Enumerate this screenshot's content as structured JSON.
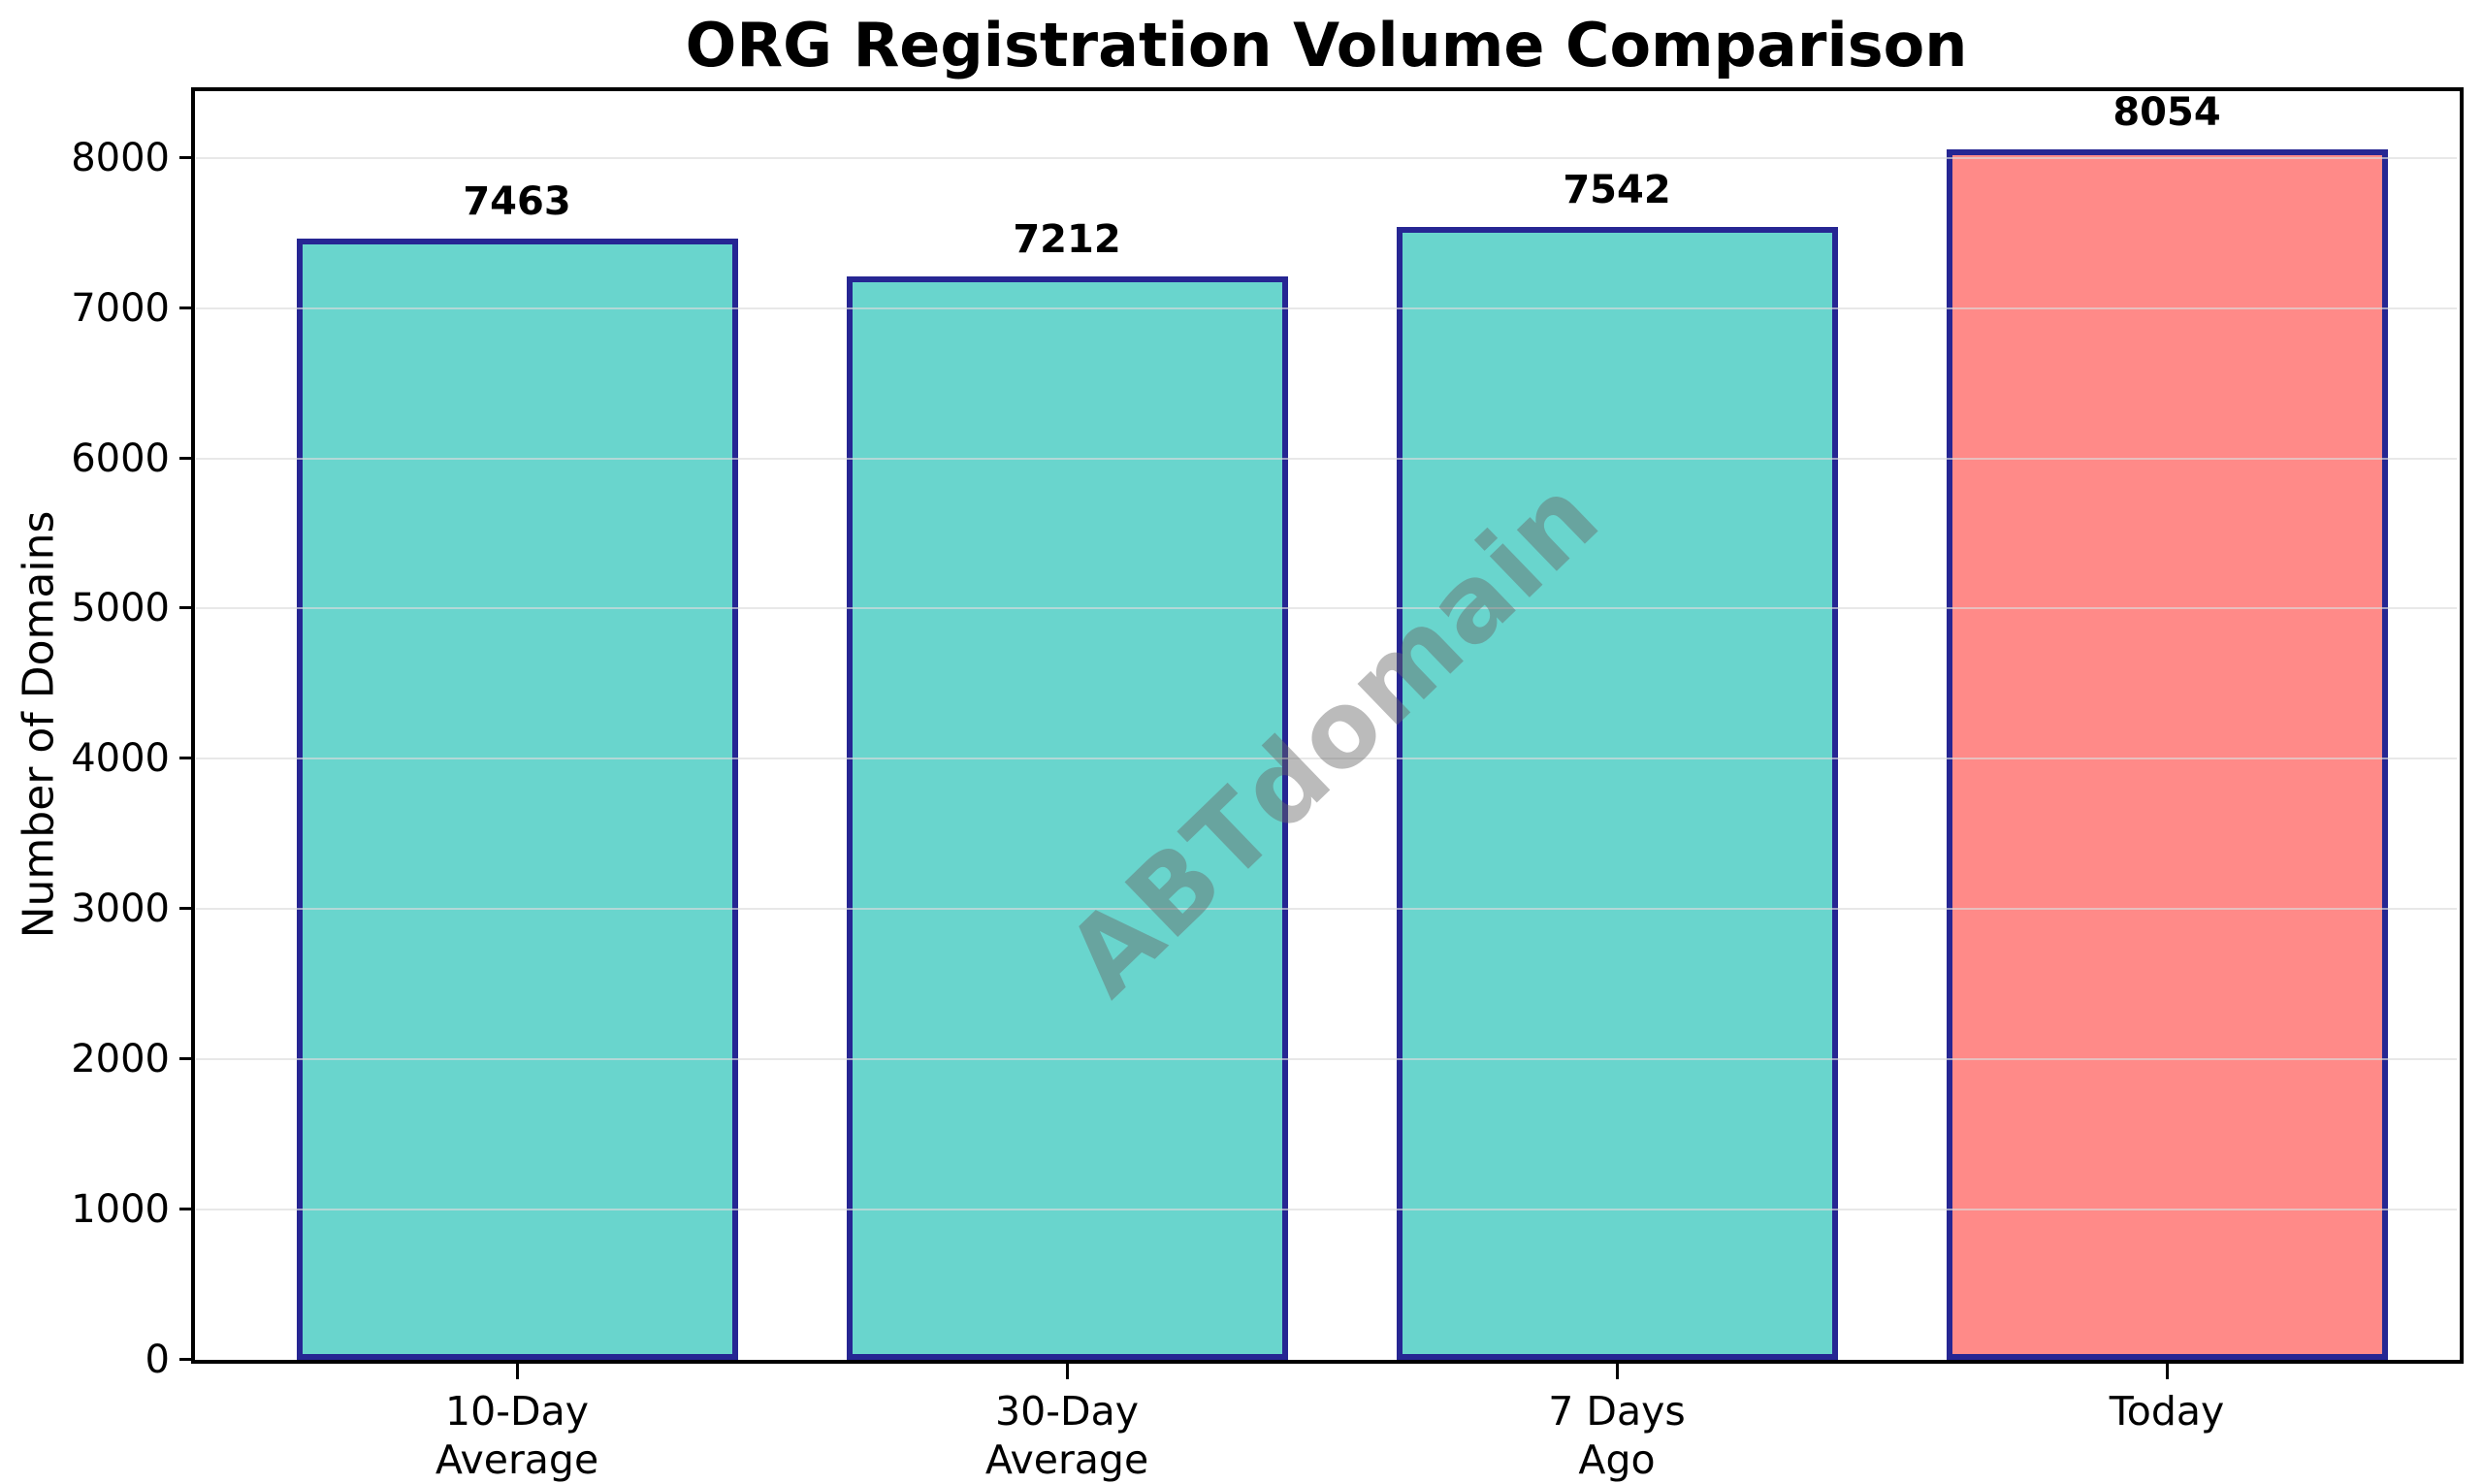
{
  "chart_data": {
    "type": "bar",
    "title": "ORG Registration Volume Comparison",
    "ylabel": "Number of Domains",
    "xlabel": "",
    "categories": [
      "10-Day\nAverage",
      "30-Day\nAverage",
      "7 Days\nAgo",
      "Today"
    ],
    "values": [
      7463,
      7212,
      7542,
      8054
    ],
    "ylim": [
      0,
      8457
    ],
    "yticks": [
      0,
      1000,
      2000,
      3000,
      4000,
      5000,
      6000,
      7000,
      8000
    ],
    "grid": true,
    "legend_position": "none",
    "watermark": "ABTdomain",
    "colors": {
      "bar_fill": [
        "#69D5CD",
        "#69D5CD",
        "#69D5CD",
        "#FF8A88"
      ],
      "bar_edge": "#262693",
      "grid": "#E8E8E8",
      "text": "#000000",
      "watermark": "#696969",
      "background": "#FFFFFF"
    }
  }
}
